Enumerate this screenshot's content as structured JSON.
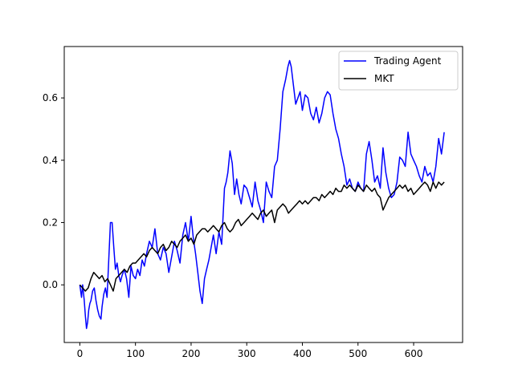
{
  "chart_data": {
    "type": "line",
    "title": "",
    "xlabel": "",
    "ylabel": "",
    "xlim": [
      -28,
      688
    ],
    "ylim": [
      -0.185,
      0.765
    ],
    "xticks": [
      0,
      100,
      200,
      300,
      400,
      500,
      600
    ],
    "yticks": [
      0.0,
      0.2,
      0.4,
      0.6
    ],
    "xtick_labels": [
      "0",
      "100",
      "200",
      "300",
      "400",
      "500",
      "600"
    ],
    "ytick_labels": [
      "0.0",
      "0.2",
      "0.4",
      "0.6"
    ],
    "grid": false,
    "legend": {
      "position": "top-right"
    },
    "series": [
      {
        "name": "Trading Agent",
        "color": "#0000ff",
        "x": [
          0,
          3,
          5,
          8,
          10,
          12,
          14,
          16,
          18,
          20,
          23,
          26,
          29,
          32,
          35,
          38,
          40,
          43,
          46,
          49,
          52,
          55,
          58,
          61,
          64,
          67,
          70,
          73,
          76,
          80,
          84,
          88,
          92,
          96,
          100,
          104,
          108,
          112,
          116,
          120,
          125,
          130,
          135,
          140,
          145,
          150,
          155,
          160,
          165,
          170,
          175,
          180,
          185,
          190,
          195,
          200,
          204,
          208,
          212,
          216,
          220,
          224,
          228,
          232,
          236,
          240,
          245,
          250,
          255,
          260,
          263,
          266,
          270,
          274,
          278,
          282,
          286,
          290,
          295,
          300,
          305,
          310,
          315,
          320,
          325,
          330,
          335,
          340,
          345,
          350,
          355,
          360,
          365,
          370,
          374,
          377,
          380,
          384,
          388,
          392,
          396,
          400,
          405,
          410,
          415,
          420,
          425,
          430,
          435,
          440,
          445,
          450,
          455,
          460,
          465,
          470,
          475,
          480,
          485,
          490,
          495,
          500,
          505,
          510,
          515,
          520,
          525,
          530,
          535,
          540,
          545,
          550,
          555,
          560,
          565,
          570,
          575,
          580,
          585,
          590,
          595,
          600,
          605,
          610,
          615,
          620,
          625,
          630,
          635,
          640,
          645,
          650,
          655
        ],
        "values": [
          0.0,
          -0.04,
          0.0,
          -0.05,
          -0.1,
          -0.14,
          -0.12,
          -0.08,
          -0.06,
          -0.05,
          -0.02,
          -0.01,
          -0.05,
          -0.08,
          -0.1,
          -0.11,
          -0.07,
          -0.03,
          -0.01,
          -0.04,
          0.08,
          0.2,
          0.2,
          0.12,
          0.05,
          0.07,
          0.03,
          0.01,
          0.03,
          0.05,
          0.02,
          -0.04,
          0.06,
          0.03,
          0.02,
          0.05,
          0.03,
          0.08,
          0.06,
          0.1,
          0.14,
          0.12,
          0.18,
          0.1,
          0.08,
          0.12,
          0.1,
          0.04,
          0.09,
          0.14,
          0.11,
          0.07,
          0.16,
          0.2,
          0.14,
          0.22,
          0.15,
          0.1,
          0.04,
          -0.02,
          -0.06,
          0.02,
          0.05,
          0.08,
          0.12,
          0.16,
          0.1,
          0.17,
          0.13,
          0.31,
          0.33,
          0.36,
          0.43,
          0.39,
          0.29,
          0.34,
          0.29,
          0.26,
          0.32,
          0.31,
          0.28,
          0.25,
          0.33,
          0.27,
          0.24,
          0.2,
          0.33,
          0.3,
          0.28,
          0.38,
          0.4,
          0.5,
          0.62,
          0.66,
          0.7,
          0.72,
          0.7,
          0.64,
          0.58,
          0.6,
          0.62,
          0.56,
          0.61,
          0.6,
          0.55,
          0.53,
          0.57,
          0.52,
          0.55,
          0.6,
          0.62,
          0.61,
          0.55,
          0.5,
          0.47,
          0.42,
          0.38,
          0.32,
          0.34,
          0.31,
          0.3,
          0.33,
          0.31,
          0.3,
          0.42,
          0.46,
          0.4,
          0.33,
          0.35,
          0.31,
          0.44,
          0.36,
          0.31,
          0.28,
          0.29,
          0.33,
          0.41,
          0.4,
          0.38,
          0.49,
          0.42,
          0.4,
          0.38,
          0.35,
          0.33,
          0.38,
          0.35,
          0.36,
          0.33,
          0.38,
          0.47,
          0.42,
          0.49
        ]
      },
      {
        "name": "MKT",
        "color": "#000000",
        "x": [
          0,
          5,
          10,
          15,
          20,
          25,
          30,
          35,
          40,
          45,
          50,
          55,
          60,
          65,
          70,
          75,
          80,
          85,
          90,
          95,
          100,
          105,
          110,
          115,
          120,
          125,
          130,
          135,
          140,
          145,
          150,
          155,
          160,
          165,
          170,
          175,
          180,
          185,
          190,
          195,
          200,
          205,
          210,
          215,
          220,
          225,
          230,
          235,
          240,
          245,
          250,
          255,
          260,
          265,
          270,
          275,
          280,
          285,
          290,
          295,
          300,
          305,
          310,
          315,
          320,
          325,
          330,
          335,
          340,
          345,
          350,
          355,
          360,
          365,
          370,
          375,
          380,
          385,
          390,
          395,
          400,
          405,
          410,
          415,
          420,
          425,
          430,
          435,
          440,
          445,
          450,
          455,
          460,
          465,
          470,
          475,
          480,
          485,
          490,
          495,
          500,
          505,
          510,
          515,
          520,
          525,
          530,
          535,
          540,
          545,
          550,
          555,
          560,
          565,
          570,
          575,
          580,
          585,
          590,
          595,
          600,
          605,
          610,
          615,
          620,
          625,
          630,
          635,
          640,
          645,
          650,
          655
        ],
        "values": [
          0.0,
          -0.01,
          -0.02,
          -0.01,
          0.02,
          0.04,
          0.03,
          0.02,
          0.03,
          0.01,
          0.02,
          0.0,
          -0.02,
          0.02,
          0.03,
          0.04,
          0.05,
          0.04,
          0.06,
          0.07,
          0.07,
          0.08,
          0.09,
          0.1,
          0.09,
          0.11,
          0.12,
          0.11,
          0.1,
          0.12,
          0.13,
          0.11,
          0.12,
          0.14,
          0.13,
          0.12,
          0.14,
          0.15,
          0.16,
          0.14,
          0.15,
          0.13,
          0.16,
          0.17,
          0.18,
          0.18,
          0.17,
          0.18,
          0.19,
          0.18,
          0.17,
          0.19,
          0.2,
          0.18,
          0.17,
          0.18,
          0.2,
          0.21,
          0.19,
          0.2,
          0.21,
          0.22,
          0.23,
          0.22,
          0.21,
          0.23,
          0.24,
          0.22,
          0.23,
          0.24,
          0.2,
          0.24,
          0.25,
          0.26,
          0.25,
          0.23,
          0.24,
          0.25,
          0.26,
          0.27,
          0.26,
          0.27,
          0.26,
          0.27,
          0.28,
          0.28,
          0.27,
          0.29,
          0.28,
          0.29,
          0.3,
          0.29,
          0.31,
          0.3,
          0.3,
          0.32,
          0.31,
          0.32,
          0.31,
          0.3,
          0.32,
          0.31,
          0.3,
          0.32,
          0.31,
          0.3,
          0.31,
          0.29,
          0.28,
          0.24,
          0.26,
          0.28,
          0.29,
          0.3,
          0.31,
          0.32,
          0.31,
          0.32,
          0.3,
          0.31,
          0.29,
          0.3,
          0.31,
          0.32,
          0.33,
          0.32,
          0.3,
          0.33,
          0.31,
          0.33,
          0.32,
          0.33
        ]
      }
    ]
  }
}
